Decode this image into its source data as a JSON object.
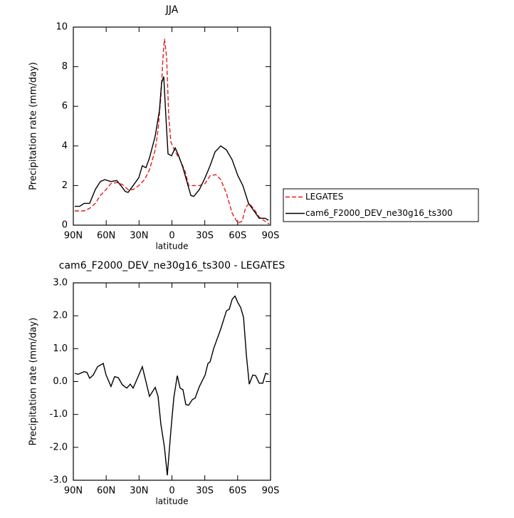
{
  "chart_data": [
    {
      "type": "line",
      "title": "JJA",
      "xlabel": "latitude",
      "ylabel": "Precipitation rate (mm/day)",
      "xlim": [
        90,
        -90
      ],
      "ylim": [
        0,
        10
      ],
      "xticks": [
        {
          "value": 90,
          "label": "90N"
        },
        {
          "value": 60,
          "label": "60N"
        },
        {
          "value": 30,
          "label": "30N"
        },
        0,
        {
          "value": -30,
          "label": "30S"
        },
        {
          "value": -60,
          "label": "60S"
        },
        {
          "value": -90,
          "label": "90S"
        }
      ],
      "yticks": [
        0,
        2,
        4,
        6,
        8,
        10
      ],
      "legend": "outside-right",
      "series": [
        {
          "name": "LEGATES",
          "color": "#e8191b",
          "dashed": true,
          "x": [
            88.7,
            80.2,
            75.1,
            69.9,
            65.3,
            60.1,
            55.6,
            50.3,
            45.2,
            40.0,
            35.4,
            30.2,
            25.0,
            20.5,
            15.3,
            12.7,
            10.1,
            8.1,
            6.8,
            4.9,
            2.9,
            1.0,
            -3.0,
            -7.5,
            -12.1,
            -15.3,
            -19.9,
            -25.1,
            -30.3,
            -34.8,
            -40.0,
            -44.6,
            -49.8,
            -55.0,
            -60.2,
            -64.1,
            -67.3,
            -70.6,
            -75.1,
            -79.7,
            -84.9,
            -88.8
          ],
          "values": [
            0.72,
            0.72,
            0.85,
            1.1,
            1.5,
            1.8,
            2.1,
            2.15,
            2.05,
            1.8,
            1.8,
            2.0,
            2.3,
            2.8,
            3.8,
            4.8,
            6.5,
            8.5,
            9.4,
            8.5,
            5.5,
            4.2,
            3.7,
            3.3,
            2.7,
            2.0,
            2.0,
            2.0,
            2.1,
            2.5,
            2.55,
            2.3,
            1.6,
            0.6,
            0.1,
            0.2,
            0.9,
            1.1,
            0.8,
            0.4,
            0.2,
            0.05
          ]
        },
        {
          "name": "cam6_F2000_DEV_ne30g16_ts300",
          "color": "#000000",
          "dashed": false,
          "x": [
            88.7,
            84.2,
            80.2,
            75.1,
            69.9,
            65.3,
            61.4,
            55.6,
            50.3,
            45.2,
            42.6,
            40.0,
            35.4,
            30.2,
            27.0,
            23.7,
            20.5,
            15.3,
            11.4,
            9.4,
            7.5,
            5.5,
            3.6,
            0.3,
            -3.0,
            -6.2,
            -10.1,
            -14.7,
            -17.3,
            -19.9,
            -25.1,
            -30.3,
            -34.8,
            -39.4,
            -44.6,
            -49.8,
            -55.0,
            -60.2,
            -64.7,
            -69.9,
            -75.1,
            -79.7,
            -84.9,
            -88.1
          ],
          "values": [
            0.95,
            0.95,
            1.1,
            1.1,
            1.8,
            2.2,
            2.3,
            2.2,
            2.25,
            1.9,
            1.7,
            1.65,
            2.0,
            2.4,
            3.0,
            2.9,
            3.4,
            4.5,
            5.8,
            7.2,
            7.5,
            5.5,
            3.6,
            3.5,
            3.9,
            3.5,
            2.9,
            2.0,
            1.5,
            1.45,
            1.8,
            2.4,
            3.0,
            3.7,
            4.0,
            3.8,
            3.3,
            2.5,
            2.0,
            1.1,
            0.7,
            0.35,
            0.35,
            0.25
          ]
        }
      ]
    },
    {
      "type": "line",
      "title": "cam6_F2000_DEV_ne30g16_ts300 - LEGATES",
      "xlabel": "latitude",
      "ylabel": "Precipitation rate (mm/day)",
      "xlim": [
        90,
        -90
      ],
      "ylim": [
        -3,
        3
      ],
      "xticks": [
        {
          "value": 90,
          "label": "90N"
        },
        {
          "value": 60,
          "label": "60N"
        },
        {
          "value": 30,
          "label": "30N"
        },
        0,
        {
          "value": -30,
          "label": "30S"
        },
        {
          "value": -60,
          "label": "60S"
        },
        {
          "value": -90,
          "label": "90S"
        }
      ],
      "yticks": [
        {
          "value": -3,
          "label": "-3.0"
        },
        {
          "value": -2,
          "label": "-2.0"
        },
        {
          "value": -1,
          "label": "-1.0"
        },
        {
          "value": 0,
          "label": "0.0"
        },
        {
          "value": 1,
          "label": "1.0"
        },
        {
          "value": 2,
          "label": "2.0"
        },
        {
          "value": 3,
          "label": "3.0"
        }
      ],
      "color": "#000000",
      "x": [
        88.7,
        85.5,
        80.2,
        77.6,
        75.1,
        71.8,
        67.9,
        62.7,
        60.1,
        55.6,
        52.3,
        49.0,
        45.2,
        41.2,
        38.0,
        35.4,
        31.5,
        27.0,
        23.7,
        20.5,
        15.3,
        12.7,
        10.1,
        6.8,
        4.2,
        1.0,
        -1.7,
        -4.9,
        -7.5,
        -10.1,
        -12.7,
        -15.3,
        -18.6,
        -21.2,
        -25.1,
        -30.3,
        -32.9,
        -34.8,
        -38.1,
        -44.6,
        -49.8,
        -52.4,
        -55.0,
        -57.6,
        -60.2,
        -62.8,
        -65.4,
        -68.0,
        -70.6,
        -73.8,
        -76.4,
        -79.7,
        -82.9,
        -85.5,
        -88.1
      ],
      "values": [
        0.25,
        0.22,
        0.3,
        0.28,
        0.1,
        0.2,
        0.45,
        0.55,
        0.2,
        -0.15,
        0.15,
        0.12,
        -0.1,
        -0.2,
        -0.08,
        -0.2,
        0.1,
        0.45,
        0.0,
        -0.45,
        -0.18,
        -0.45,
        -1.3,
        -2.0,
        -2.85,
        -1.5,
        -0.5,
        0.18,
        -0.2,
        -0.25,
        -0.7,
        -0.72,
        -0.55,
        -0.5,
        -0.15,
        0.2,
        0.55,
        0.6,
        1.0,
        1.6,
        2.15,
        2.2,
        2.5,
        2.6,
        2.4,
        2.25,
        1.95,
        0.8,
        -0.08,
        0.2,
        0.18,
        -0.05,
        -0.05,
        0.25,
        0.22
      ]
    }
  ]
}
